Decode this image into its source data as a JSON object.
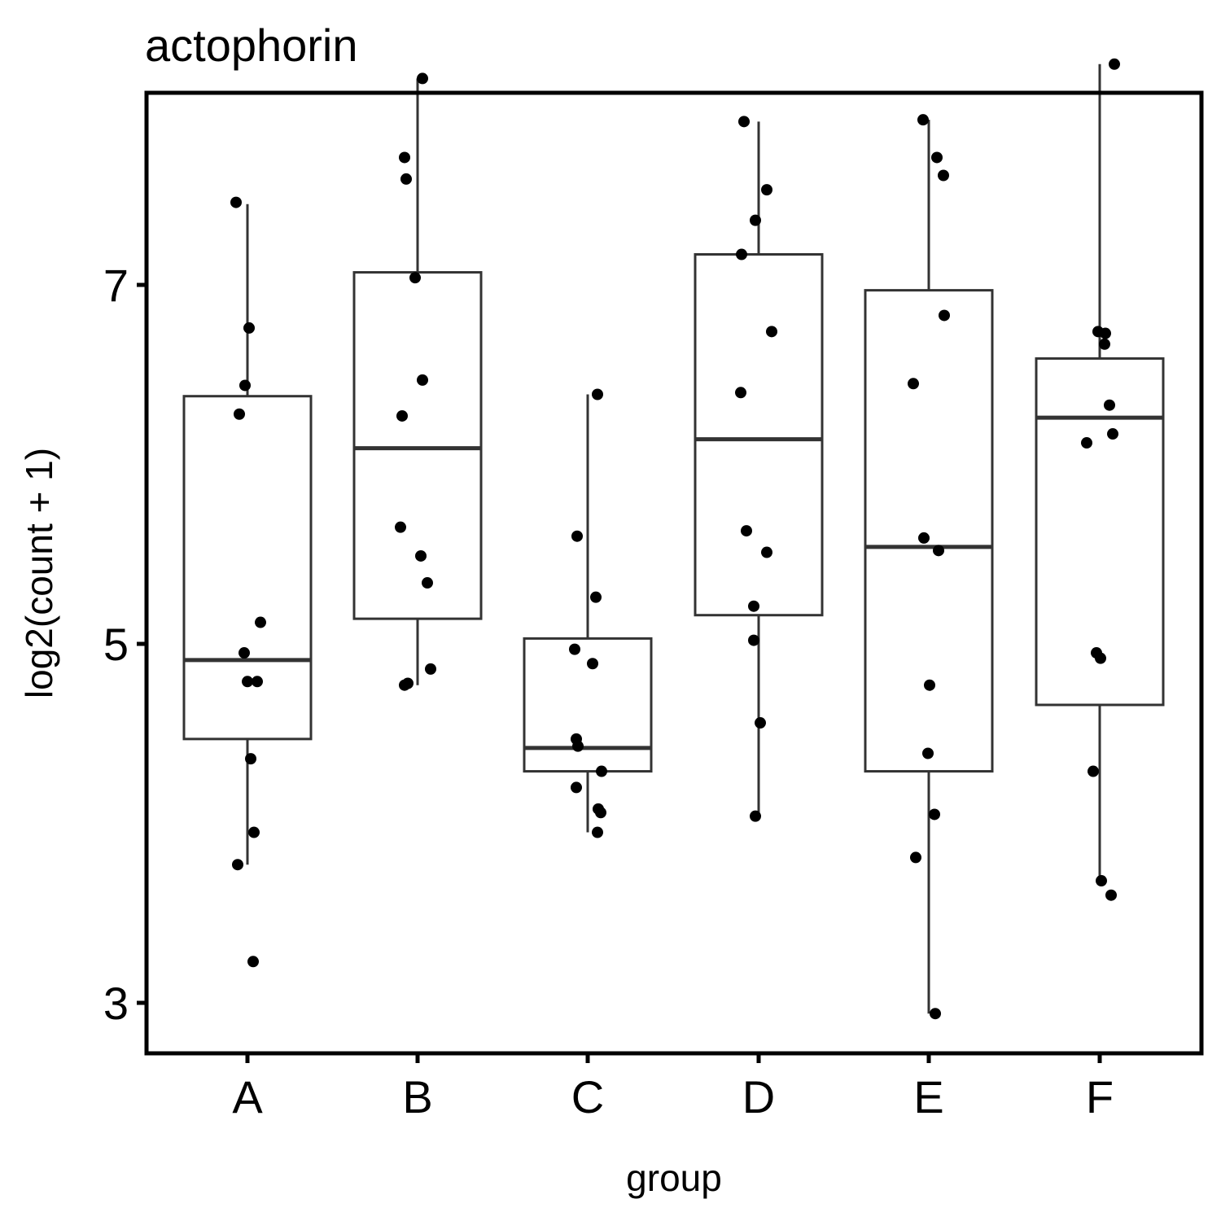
{
  "chart_data": {
    "type": "boxplot",
    "title": "actophorin",
    "xlabel": "group",
    "ylabel": "log2(count + 1)",
    "categories": [
      "A",
      "B",
      "C",
      "D",
      "E",
      "F"
    ],
    "yticks": [
      3,
      5,
      7
    ],
    "ylim": [
      2.65,
      9.35
    ],
    "grid": false,
    "legend": "none",
    "box_style": {
      "fill": "#ffffff",
      "stroke": "#333333",
      "point_color": "#000000"
    },
    "boxes": [
      {
        "group": "A",
        "lower": 3.77,
        "q1": 4.47,
        "median": 4.91,
        "q3": 6.38,
        "upper": 7.45
      },
      {
        "group": "B",
        "lower": 4.77,
        "q1": 5.14,
        "median": 6.09,
        "q3": 7.07,
        "upper": 8.15
      },
      {
        "group": "C",
        "lower": 3.95,
        "q1": 4.29,
        "median": 4.42,
        "q3": 5.03,
        "upper": 6.39
      },
      {
        "group": "D",
        "lower": 4.04,
        "q1": 5.16,
        "median": 6.14,
        "q3": 7.17,
        "upper": 7.91
      },
      {
        "group": "E",
        "lower": 2.94,
        "q1": 4.29,
        "median": 5.54,
        "q3": 6.97,
        "upper": 7.92
      },
      {
        "group": "F",
        "lower": 3.68,
        "q1": 4.66,
        "median": 6.26,
        "q3": 6.59,
        "upper": 8.23
      }
    ],
    "points": [
      {
        "group": "A",
        "values": [
          7.46,
          6.76,
          6.44,
          6.28,
          5.12,
          4.95,
          4.79,
          4.79,
          4.36,
          3.95,
          3.23,
          3.77
        ]
      },
      {
        "group": "B",
        "values": [
          8.15,
          7.71,
          7.59,
          7.04,
          6.47,
          6.27,
          5.65,
          5.49,
          5.34,
          4.86,
          4.78,
          4.77
        ]
      },
      {
        "group": "C",
        "values": [
          6.39,
          5.6,
          5.26,
          4.97,
          4.89,
          4.47,
          4.43,
          4.29,
          4.2,
          4.08,
          4.06,
          3.95
        ]
      },
      {
        "group": "D",
        "values": [
          7.91,
          7.53,
          7.36,
          7.17,
          6.74,
          6.4,
          5.63,
          5.51,
          5.21,
          5.02,
          4.56,
          4.04
        ]
      },
      {
        "group": "E",
        "values": [
          7.92,
          7.71,
          7.61,
          6.83,
          6.45,
          5.59,
          5.52,
          4.77,
          4.39,
          4.05,
          3.81,
          2.94
        ]
      },
      {
        "group": "F",
        "values": [
          8.23,
          6.74,
          6.73,
          6.67,
          6.33,
          6.17,
          6.12,
          4.92,
          4.95,
          4.29,
          3.6,
          3.68
        ]
      }
    ]
  }
}
